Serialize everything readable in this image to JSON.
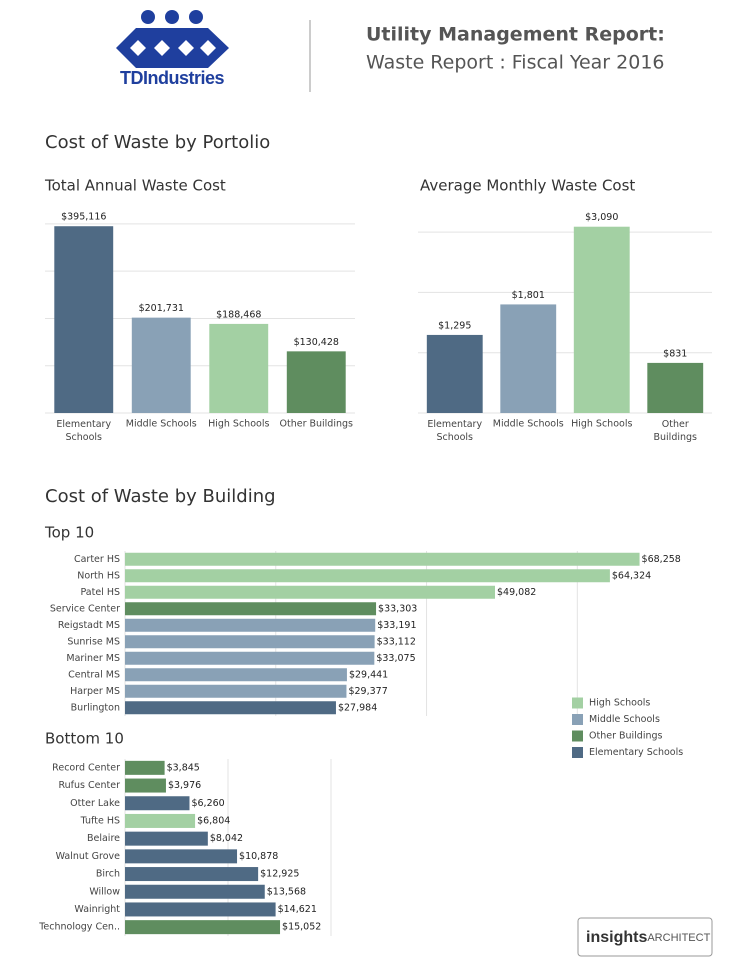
{
  "header": {
    "logo_text": "TDIndustries",
    "title": "Utility Management Report:",
    "subtitle": "Waste Report : Fiscal Year 2016"
  },
  "sections": [
    "Cost of Waste by Portolio",
    "Cost of Waste by Building"
  ],
  "chart_data": [
    {
      "type": "bar",
      "title": "Total Annual Waste Cost",
      "categories": [
        "Elementary Schools",
        "Middle Schools",
        "High Schools",
        "Other Buildings"
      ],
      "values": [
        395116,
        201731,
        188468,
        130428
      ],
      "value_labels": [
        "$395,116",
        "$201,731",
        "$188,468",
        "$130,428"
      ],
      "colors": [
        "#4f6a84",
        "#89a1b6",
        "#a3d0a3",
        "#5f8d5f"
      ],
      "ylim": [
        0,
        440000
      ],
      "yticks": [
        0,
        100000,
        200000,
        300000,
        400000
      ],
      "grid": true
    },
    {
      "type": "bar",
      "title": "Average Monthly Waste Cost",
      "categories": [
        "Elementary Schools",
        "Middle Schools",
        "High Schools",
        "Other Buildings"
      ],
      "values": [
        1295,
        1801,
        3090,
        831
      ],
      "value_labels": [
        "$1,295",
        "$1,801",
        "$3,090",
        "$831"
      ],
      "colors": [
        "#4f6a84",
        "#89a1b6",
        "#a3d0a3",
        "#5f8d5f"
      ],
      "ylim": [
        0,
        3450
      ],
      "yticks": [
        0,
        1000,
        2000,
        3000
      ],
      "grid": true
    },
    {
      "type": "hbar",
      "title": "Top 10",
      "categories": [
        "Carter HS",
        "North HS",
        "Patel HS",
        "Service Center",
        "Reigstadt MS",
        "Sunrise MS",
        "Mariner MS",
        "Central MS",
        "Harper MS",
        "Burlington"
      ],
      "values": [
        68258,
        64324,
        49082,
        33303,
        33191,
        33112,
        33075,
        29441,
        29377,
        27984
      ],
      "value_labels": [
        "$68,258",
        "$64,324",
        "$49,082",
        "$33,303",
        "$33,191",
        "$33,112",
        "$33,075",
        "$29,441",
        "$29,377",
        "$27,984"
      ],
      "colors": [
        "#a3d0a3",
        "#a3d0a3",
        "#a3d0a3",
        "#5f8d5f",
        "#89a1b6",
        "#89a1b6",
        "#89a1b6",
        "#89a1b6",
        "#89a1b6",
        "#4f6a84"
      ],
      "xlim": [
        0,
        78000
      ],
      "xticks": [
        0,
        20000,
        40000,
        60000
      ],
      "grid": true,
      "legend": {
        "position": "bottom-right",
        "items": [
          {
            "name": "High Schools",
            "color": "#a3d0a3"
          },
          {
            "name": "Middle Schools",
            "color": "#89a1b6"
          },
          {
            "name": "Other Buildings",
            "color": "#5f8d5f"
          },
          {
            "name": "Elementary Schools",
            "color": "#4f6a84"
          }
        ]
      }
    },
    {
      "type": "hbar",
      "title": "Bottom 10",
      "categories": [
        "Record Center",
        "Rufus Center",
        "Otter Lake",
        "Tufte HS",
        "Belaire",
        "Walnut Grove",
        "Birch",
        "Willow",
        "Wainright",
        "Technology Cen.."
      ],
      "values": [
        3845,
        3976,
        6260,
        6804,
        8042,
        10878,
        12925,
        13568,
        14621,
        15052
      ],
      "value_labels": [
        "$3,845",
        "$3,976",
        "$6,260",
        "$6,804",
        "$8,042",
        "$10,878",
        "$12,925",
        "$13,568",
        "$14,621",
        "$15,052"
      ],
      "colors": [
        "#5f8d5f",
        "#5f8d5f",
        "#4f6a84",
        "#a3d0a3",
        "#4f6a84",
        "#4f6a84",
        "#4f6a84",
        "#4f6a84",
        "#4f6a84",
        "#5f8d5f"
      ],
      "xlim": [
        0,
        20000
      ],
      "xticks": [
        0,
        10000,
        20000
      ],
      "grid": true
    }
  ],
  "footer": {
    "brand": "insights",
    "brand_suffix": "ARCHITECT"
  }
}
